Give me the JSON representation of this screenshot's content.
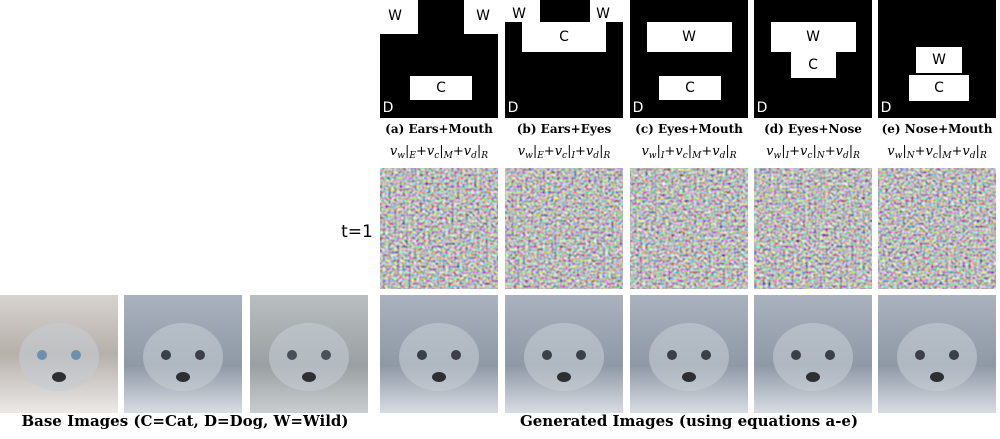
{
  "panels": [
    {
      "caption": "(a) Ears+Mouth",
      "labels": [
        "W",
        "W",
        "C",
        "D"
      ],
      "equation": [
        {
          "text": "v"
        },
        {
          "sub": "w"
        },
        {
          "text": "|"
        },
        {
          "sub": "E"
        },
        {
          "text": "+v"
        },
        {
          "sub": "c"
        },
        {
          "text": "|"
        },
        {
          "sub": "M"
        },
        {
          "text": "+v"
        },
        {
          "sub": "d"
        },
        {
          "text": "|"
        },
        {
          "sub": "R"
        }
      ]
    },
    {
      "caption": "(b) Ears+Eyes",
      "labels": [
        "W",
        "W",
        "C",
        "D"
      ],
      "equation": [
        {
          "text": "v"
        },
        {
          "sub": "w"
        },
        {
          "text": "|"
        },
        {
          "sub": "E"
        },
        {
          "text": "+v"
        },
        {
          "sub": "c"
        },
        {
          "text": "|"
        },
        {
          "sub": "I"
        },
        {
          "text": "+v"
        },
        {
          "sub": "d"
        },
        {
          "text": "|"
        },
        {
          "sub": "R"
        }
      ]
    },
    {
      "caption": "(c) Eyes+Mouth",
      "labels": [
        "W",
        "C",
        "D"
      ],
      "equation": [
        {
          "text": "v"
        },
        {
          "sub": "w"
        },
        {
          "text": "|"
        },
        {
          "sub": "I"
        },
        {
          "text": "+v"
        },
        {
          "sub": "c"
        },
        {
          "text": "|"
        },
        {
          "sub": "M"
        },
        {
          "text": "+v"
        },
        {
          "sub": "d"
        },
        {
          "text": "|"
        },
        {
          "sub": "R"
        }
      ]
    },
    {
      "caption": "(d) Eyes+Nose",
      "labels": [
        "W",
        "C",
        "D"
      ],
      "equation": [
        {
          "text": "v"
        },
        {
          "sub": "w"
        },
        {
          "text": "|"
        },
        {
          "sub": "I"
        },
        {
          "text": "+v"
        },
        {
          "sub": "c"
        },
        {
          "text": "|"
        },
        {
          "sub": "N"
        },
        {
          "text": "+v"
        },
        {
          "sub": "d"
        },
        {
          "text": "|"
        },
        {
          "sub": "R"
        }
      ]
    },
    {
      "caption": "(e) Nose+Mouth",
      "labels": [
        "W",
        "C",
        "D"
      ],
      "equation": [
        {
          "text": "v"
        },
        {
          "sub": "w"
        },
        {
          "text": "|"
        },
        {
          "sub": "N"
        },
        {
          "text": "+v"
        },
        {
          "sub": "c"
        },
        {
          "text": "|"
        },
        {
          "sub": "M"
        },
        {
          "text": "+v"
        },
        {
          "sub": "d"
        },
        {
          "text": "|"
        },
        {
          "sub": "R"
        }
      ]
    }
  ],
  "row_label": "t=1",
  "base_caption": "Base Images (C=Cat, D=Dog, W=Wild)",
  "generated_caption": "Generated Images (using equations a-e)"
}
